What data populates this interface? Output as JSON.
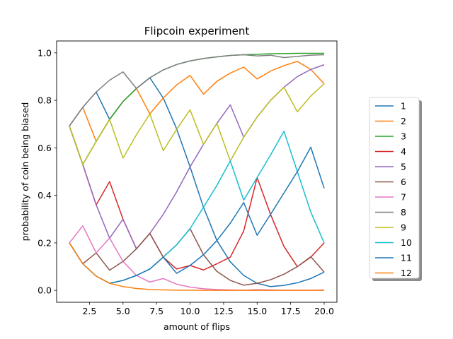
{
  "chart_data": {
    "type": "line",
    "title": "Flipcoin experiment",
    "xlabel": "amount of flips",
    "ylabel": "probability of coin being biased",
    "xlim": [
      0.05,
      20.95
    ],
    "ylim": [
      -0.05,
      1.05
    ],
    "xticks": [
      2.5,
      5.0,
      7.5,
      10.0,
      12.5,
      15.0,
      17.5,
      20.0
    ],
    "xtick_labels": [
      "2.5",
      "5.0",
      "7.5",
      "10.0",
      "12.5",
      "15.0",
      "17.5",
      "20.0"
    ],
    "yticks": [
      0.0,
      0.2,
      0.4,
      0.6,
      0.8,
      1.0
    ],
    "ytick_labels": [
      "0.0",
      "0.2",
      "0.4",
      "0.6",
      "0.8",
      "1.0"
    ],
    "grid": false,
    "legend_position": "right",
    "x": [
      1,
      2,
      3,
      4,
      5,
      6,
      7,
      8,
      9,
      10,
      11,
      12,
      13,
      14,
      15,
      16,
      17,
      18,
      19,
      20
    ],
    "series": [
      {
        "name": "1",
        "color": "#1f77b4",
        "values": [
          0.692,
          0.771,
          0.835,
          0.72,
          0.795,
          0.85,
          0.895,
          0.81,
          0.68,
          0.52,
          0.35,
          0.21,
          0.12,
          0.063,
          0.03,
          0.016,
          0.021,
          0.032,
          0.05,
          0.077
        ]
      },
      {
        "name": "2",
        "color": "#ff7f0e",
        "values": [
          0.692,
          0.771,
          0.627,
          0.72,
          0.795,
          0.85,
          0.743,
          0.81,
          0.865,
          0.905,
          0.826,
          0.88,
          0.915,
          0.94,
          0.89,
          0.923,
          0.946,
          0.964,
          0.93,
          0.87
        ]
      },
      {
        "name": "3",
        "color": "#2ca02c",
        "values": [
          0.692,
          0.53,
          0.627,
          0.72,
          0.795,
          0.85,
          0.895,
          0.928,
          0.951,
          0.966,
          0.976,
          0.983,
          0.989,
          0.992,
          0.994,
          0.996,
          0.997,
          0.998,
          0.998,
          0.998
        ]
      },
      {
        "name": "4",
        "color": "#d62728",
        "values": [
          0.692,
          0.53,
          0.36,
          0.458,
          0.3,
          0.175,
          0.24,
          0.14,
          0.09,
          0.105,
          0.086,
          0.112,
          0.14,
          0.25,
          0.475,
          0.32,
          0.185,
          0.1,
          0.14,
          0.2
        ]
      },
      {
        "name": "5",
        "color": "#9467bd",
        "values": [
          0.692,
          0.53,
          0.36,
          0.22,
          0.3,
          0.175,
          0.24,
          0.32,
          0.415,
          0.52,
          0.615,
          0.703,
          0.781,
          0.645,
          0.73,
          0.8,
          0.855,
          0.9,
          0.93,
          0.95
        ]
      },
      {
        "name": "6",
        "color": "#8c564b",
        "values": [
          0.2,
          0.112,
          0.158,
          0.085,
          0.122,
          0.175,
          0.24,
          0.14,
          0.192,
          0.26,
          0.15,
          0.08,
          0.042,
          0.022,
          0.03,
          0.045,
          0.068,
          0.1,
          0.142,
          0.077
        ]
      },
      {
        "name": "7",
        "color": "#e377c2",
        "values": [
          0.2,
          0.272,
          0.158,
          0.22,
          0.122,
          0.063,
          0.035,
          0.05,
          0.026,
          0.014,
          0.007,
          0.004,
          0.002,
          0.001,
          0.003,
          0.002,
          0.001,
          0.001,
          0.001,
          0.002
        ]
      },
      {
        "name": "8",
        "color": "#7f7f7f",
        "values": [
          0.692,
          0.771,
          0.835,
          0.885,
          0.92,
          0.85,
          0.895,
          0.928,
          0.951,
          0.966,
          0.976,
          0.983,
          0.989,
          0.992,
          0.987,
          0.99,
          0.98,
          0.985,
          0.99,
          0.992
        ]
      },
      {
        "name": "9",
        "color": "#bcbd22",
        "values": [
          0.692,
          0.53,
          0.627,
          0.72,
          0.557,
          0.655,
          0.743,
          0.588,
          0.678,
          0.76,
          0.615,
          0.703,
          0.545,
          0.645,
          0.73,
          0.8,
          0.855,
          0.752,
          0.818,
          0.87
        ]
      },
      {
        "name": "10",
        "color": "#17becf",
        "values": [
          0.2,
          0.112,
          0.06,
          0.03,
          0.042,
          0.063,
          0.09,
          0.14,
          0.192,
          0.26,
          0.35,
          0.442,
          0.545,
          0.38,
          0.475,
          0.57,
          0.67,
          0.5,
          0.33,
          0.2
        ]
      },
      {
        "name": "11",
        "color": "#1f77b4",
        "values": [
          0.2,
          0.112,
          0.06,
          0.03,
          0.042,
          0.063,
          0.09,
          0.14,
          0.072,
          0.105,
          0.15,
          0.21,
          0.283,
          0.37,
          0.232,
          0.32,
          0.41,
          0.5,
          0.603,
          0.43
        ]
      },
      {
        "name": "12",
        "color": "#ff7f0e",
        "values": [
          0.2,
          0.112,
          0.06,
          0.03,
          0.016,
          0.008,
          0.004,
          0.002,
          0.001,
          0.001,
          0.0,
          0.0,
          0.0,
          0.0,
          0.0,
          0.0,
          0.0,
          0.0,
          0.0,
          0.0
        ]
      }
    ]
  }
}
